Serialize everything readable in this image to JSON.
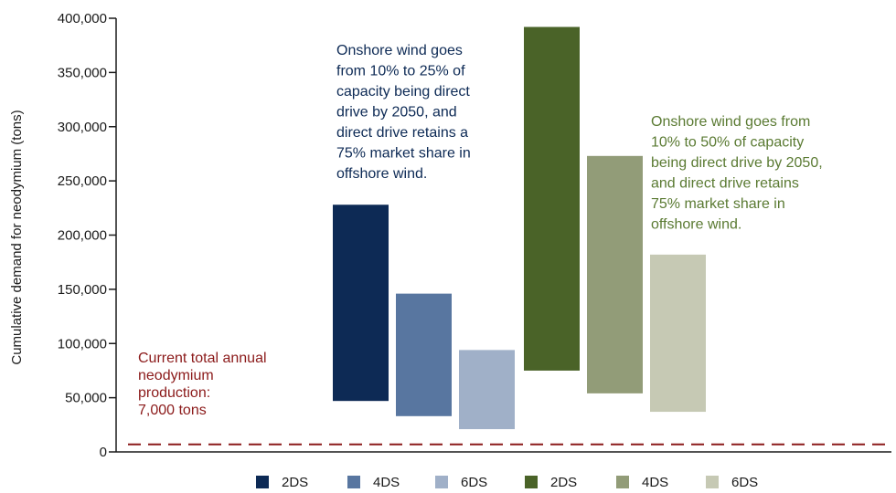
{
  "chart_data": {
    "type": "bar",
    "subtype": "floating-range",
    "ylabel": "Cumulative demand for neodymium (tons)",
    "xlabel": "",
    "ylim": [
      0,
      400000
    ],
    "yticks": [
      0,
      50000,
      100000,
      150000,
      200000,
      250000,
      300000,
      350000,
      400000
    ],
    "ytick_labels": [
      "0",
      "50,000",
      "100,000",
      "150,000",
      "200,000",
      "250,000",
      "300,000",
      "350,000",
      "400,000"
    ],
    "grid": false,
    "legend_position": "bottom",
    "series": [
      {
        "name": "2DS",
        "low": 47000,
        "high": 228000,
        "color": "#0d2a55",
        "group": "low"
      },
      {
        "name": "4DS",
        "low": 33000,
        "high": 146000,
        "color": "#5876a0",
        "group": "low"
      },
      {
        "name": "6DS",
        "low": 21000,
        "high": 94000,
        "color": "#a0b0c8",
        "group": "low"
      },
      {
        "name": "2DS",
        "low": 75000,
        "high": 392000,
        "color": "#4a6328",
        "group": "high"
      },
      {
        "name": "4DS",
        "low": 54000,
        "high": 273000,
        "color": "#929c78",
        "group": "high"
      },
      {
        "name": "6DS",
        "low": 37000,
        "high": 182000,
        "color": "#c6c9b4",
        "group": "high"
      }
    ],
    "reference_line": {
      "value": 7000,
      "color": "#8b1a1a",
      "label_lines": [
        "Current total annual",
        "neodymium",
        "production:",
        "7,000 tons"
      ]
    },
    "annotations": [
      {
        "color": "#0d2a55",
        "lines": [
          "Onshore wind goes",
          "from 10% to 25% of",
          "capacity being direct",
          "drive by 2050, and",
          "direct drive retains a",
          "75% market share in",
          "offshore wind."
        ]
      },
      {
        "color": "#5a7a32",
        "lines": [
          "Onshore wind goes from",
          "10% to 50% of capacity",
          "being direct drive by 2050,",
          "and direct drive retains",
          "75% market share in",
          "offshore wind."
        ]
      }
    ]
  }
}
